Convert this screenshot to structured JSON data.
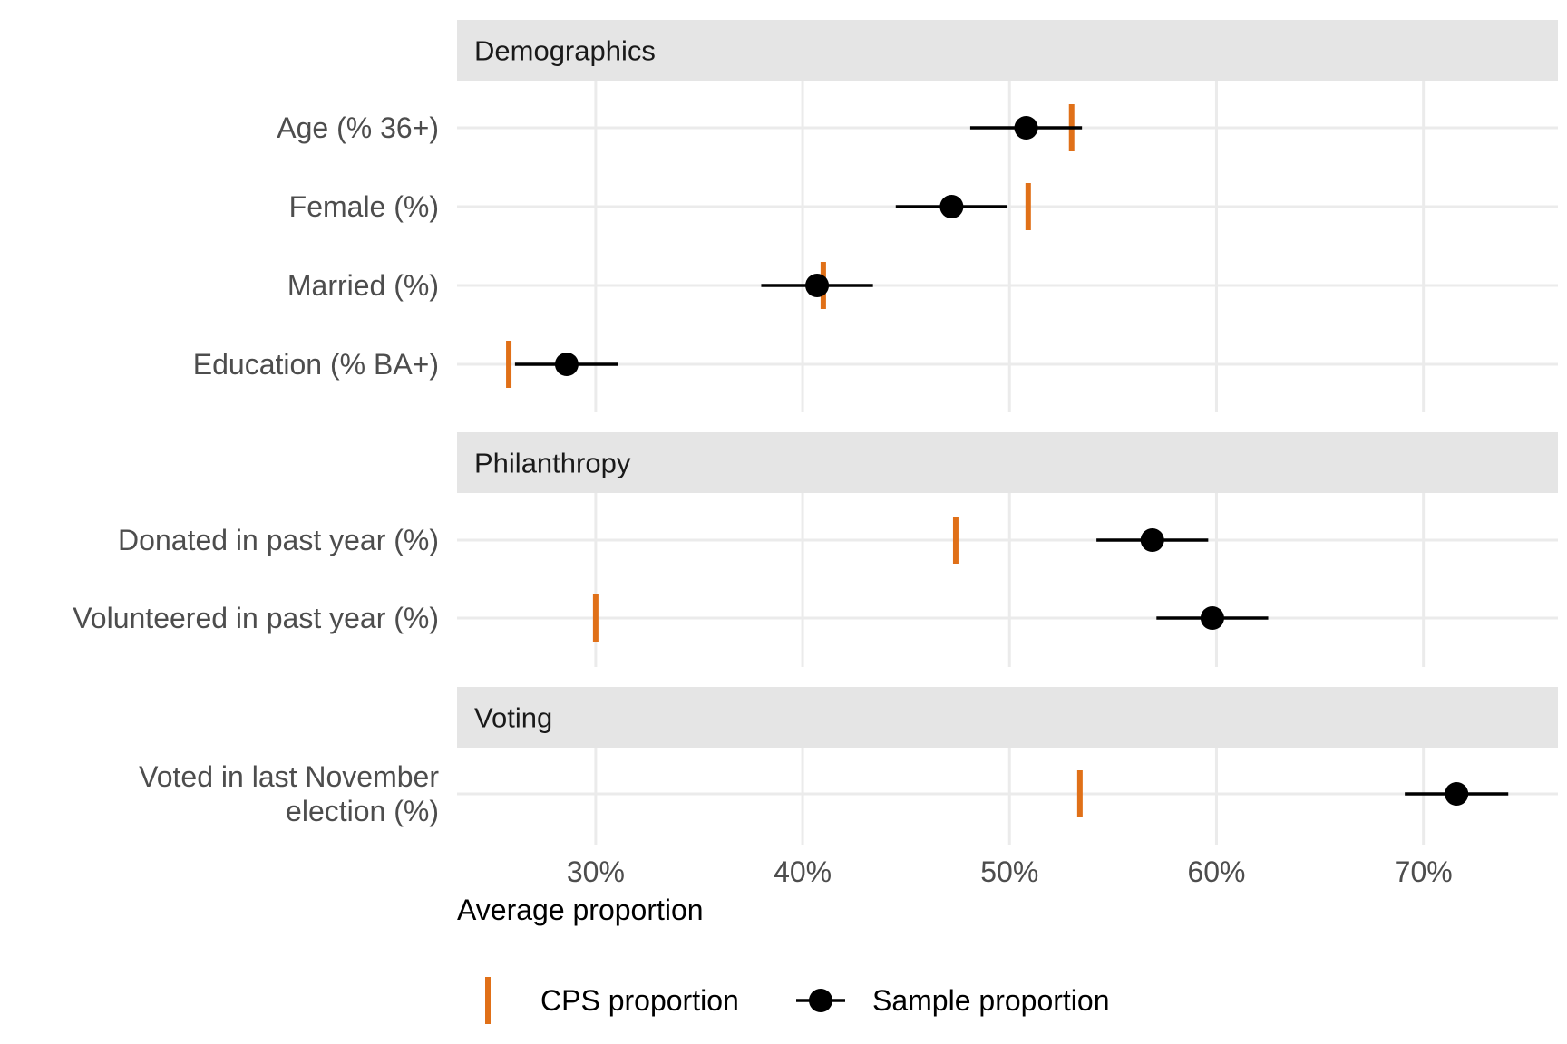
{
  "chart_data": {
    "type": "dot-errorbar",
    "xlabel": "Average proportion",
    "xlim": [
      0.233,
      0.765
    ],
    "xticks": [
      0.3,
      0.4,
      0.5,
      0.6,
      0.7
    ],
    "xtick_labels": [
      "30%",
      "40%",
      "50%",
      "60%",
      "70%"
    ],
    "grid": true,
    "legend_position": "bottom",
    "colors": {
      "cps": "#e07018",
      "sample": "#000000",
      "strip": "#e5e5e5",
      "grid": "#ebebeb"
    },
    "legend": [
      {
        "key": "cps",
        "label": "CPS proportion"
      },
      {
        "key": "sample",
        "label": "Sample proportion"
      }
    ],
    "panels": [
      {
        "title": "Demographics",
        "rows": [
          {
            "label": [
              "Age (% 36+)"
            ],
            "sample": 0.508,
            "ci": [
              0.481,
              0.535
            ],
            "cps": 0.53
          },
          {
            "label": [
              "Female (%)"
            ],
            "sample": 0.472,
            "ci": [
              0.445,
              0.499
            ],
            "cps": 0.509
          },
          {
            "label": [
              "Married (%)"
            ],
            "sample": 0.407,
            "ci": [
              0.38,
              0.434
            ],
            "cps": 0.41
          },
          {
            "label": [
              "Education (% BA+)"
            ],
            "sample": 0.286,
            "ci": [
              0.261,
              0.311
            ],
            "cps": 0.258
          }
        ]
      },
      {
        "title": "Philanthropy",
        "rows": [
          {
            "label": [
              "Donated in past year (%)"
            ],
            "sample": 0.569,
            "ci": [
              0.542,
              0.596
            ],
            "cps": 0.474
          },
          {
            "label": [
              "Volunteered in past year (%)"
            ],
            "sample": 0.598,
            "ci": [
              0.571,
              0.625
            ],
            "cps": 0.3
          }
        ]
      },
      {
        "title": "Voting",
        "rows": [
          {
            "label": [
              "Voted in last November",
              "election (%)"
            ],
            "sample": 0.716,
            "ci": [
              0.691,
              0.741
            ],
            "cps": 0.534
          }
        ]
      }
    ]
  }
}
